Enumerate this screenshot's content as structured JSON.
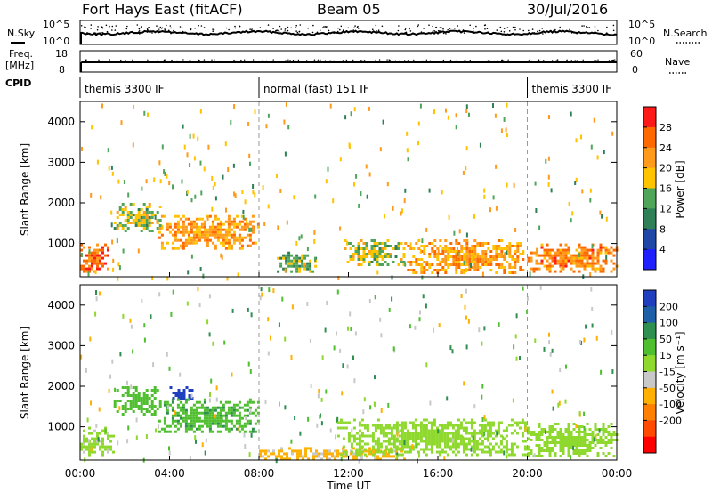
{
  "header": {
    "title": "Fort Hays East (fitACF)",
    "beam": "Beam 05",
    "date": "30/Jul/2016"
  },
  "side_labels": {
    "n_sky": "N.Sky",
    "n_search": "N.Search",
    "freq_line1": "Freq.",
    "freq_line2": "[MHz]",
    "nave": "Nave",
    "cpid": "CPID"
  },
  "small_axes": {
    "noise_left_top": "10^5",
    "noise_left_bottom": "10^0",
    "noise_right_top": "10^5",
    "noise_right_bottom": "10^0",
    "freq_left_top": "18",
    "freq_left_bottom": "8",
    "nave_right_top": "60",
    "nave_right_bottom": "0"
  },
  "cpid_segments": [
    {
      "label": "themis 3300 IF",
      "start_hour": 0,
      "end_hour": 8
    },
    {
      "label": "normal (fast) 151 IF",
      "start_hour": 8,
      "end_hour": 20
    },
    {
      "label": "themis 3300 IF",
      "start_hour": 20,
      "end_hour": 24
    }
  ],
  "panels": {
    "power_ylabel": "Slant Range [km]",
    "velocity_ylabel": "Slant Range [km]",
    "xlabel": "Time UT"
  },
  "colorbars": {
    "power": {
      "label": "Power [dB]",
      "ticks": [
        "28",
        "24",
        "20",
        "16",
        "12",
        "8",
        "4"
      ],
      "colors": [
        "#ff1a1a",
        "#ff6a00",
        "#ff9a1a",
        "#ffc300",
        "#4fa65a",
        "#2f7f57",
        "#1f47a8",
        "#1f1fff"
      ]
    },
    "velocity": {
      "label": "Velocity [m s⁻¹]",
      "ticks": [
        "200",
        "100",
        "50",
        "15",
        "-15",
        "-50",
        "-100",
        "-200"
      ],
      "colors": [
        "#1f3fbf",
        "#1f5fa8",
        "#2f8f4f",
        "#4fbf2f",
        "#8fd92f",
        "#c8c8c8",
        "#ffb000",
        "#ff8000",
        "#ff4a00",
        "#ff0000"
      ]
    }
  },
  "chart_data": {
    "type": "heatmap",
    "x_axis": {
      "label": "Time UT",
      "range": [
        "00:00",
        "24:00"
      ],
      "tick_labels": [
        "00:00",
        "04:00",
        "08:00",
        "12:00",
        "16:00",
        "20:00",
        "00:00"
      ]
    },
    "y_axis": {
      "label": "Slant Range [km]",
      "range_km": [
        180,
        4500
      ],
      "tick_labels": [
        "1000",
        "2000",
        "3000",
        "4000"
      ]
    },
    "mode_change_hours": [
      8,
      20
    ],
    "noise_sky_log10_approx": 2.5,
    "frequency_mhz_approx": 10.5,
    "nave_approx": 14,
    "power_regions": [
      {
        "hours": [
          0.0,
          1.2
        ],
        "range_km": [
          300,
          1000
        ],
        "power_db": 24
      },
      {
        "hours": [
          1.5,
          3.6
        ],
        "range_km": [
          1300,
          2000
        ],
        "power_db": 14
      },
      {
        "hours": [
          3.5,
          8.0
        ],
        "range_km": [
          900,
          1700
        ],
        "power_db": 20
      },
      {
        "hours": [
          8.8,
          10.5
        ],
        "range_km": [
          300,
          800
        ],
        "power_db": 12
      },
      {
        "hours": [
          11.8,
          14.5
        ],
        "range_km": [
          500,
          1100
        ],
        "power_db": 14
      },
      {
        "hours": [
          14.5,
          19.8
        ],
        "range_km": [
          300,
          1100
        ],
        "power_db": 20
      },
      {
        "hours": [
          20.0,
          24.0
        ],
        "range_km": [
          300,
          1000
        ],
        "power_db": 22
      }
    ],
    "velocity_regions": [
      {
        "hours": [
          0.0,
          1.5
        ],
        "range_km": [
          300,
          1000
        ],
        "velocity_ms": -5
      },
      {
        "hours": [
          1.5,
          3.6
        ],
        "range_km": [
          1300,
          2000
        ],
        "velocity_ms": 30
      },
      {
        "hours": [
          4.0,
          5.0
        ],
        "range_km": [
          1700,
          2000
        ],
        "velocity_ms": 220
      },
      {
        "hours": [
          3.5,
          8.0
        ],
        "range_km": [
          900,
          1700
        ],
        "velocity_ms": 40
      },
      {
        "hours": [
          8.0,
          14.5
        ],
        "range_km": [
          200,
          500
        ],
        "velocity_ms": -60
      },
      {
        "hours": [
          11.5,
          20.0
        ],
        "range_km": [
          300,
          1200
        ],
        "velocity_ms": 0
      },
      {
        "hours": [
          20.0,
          24.0
        ],
        "range_km": [
          300,
          1100
        ],
        "velocity_ms": 0
      }
    ]
  }
}
